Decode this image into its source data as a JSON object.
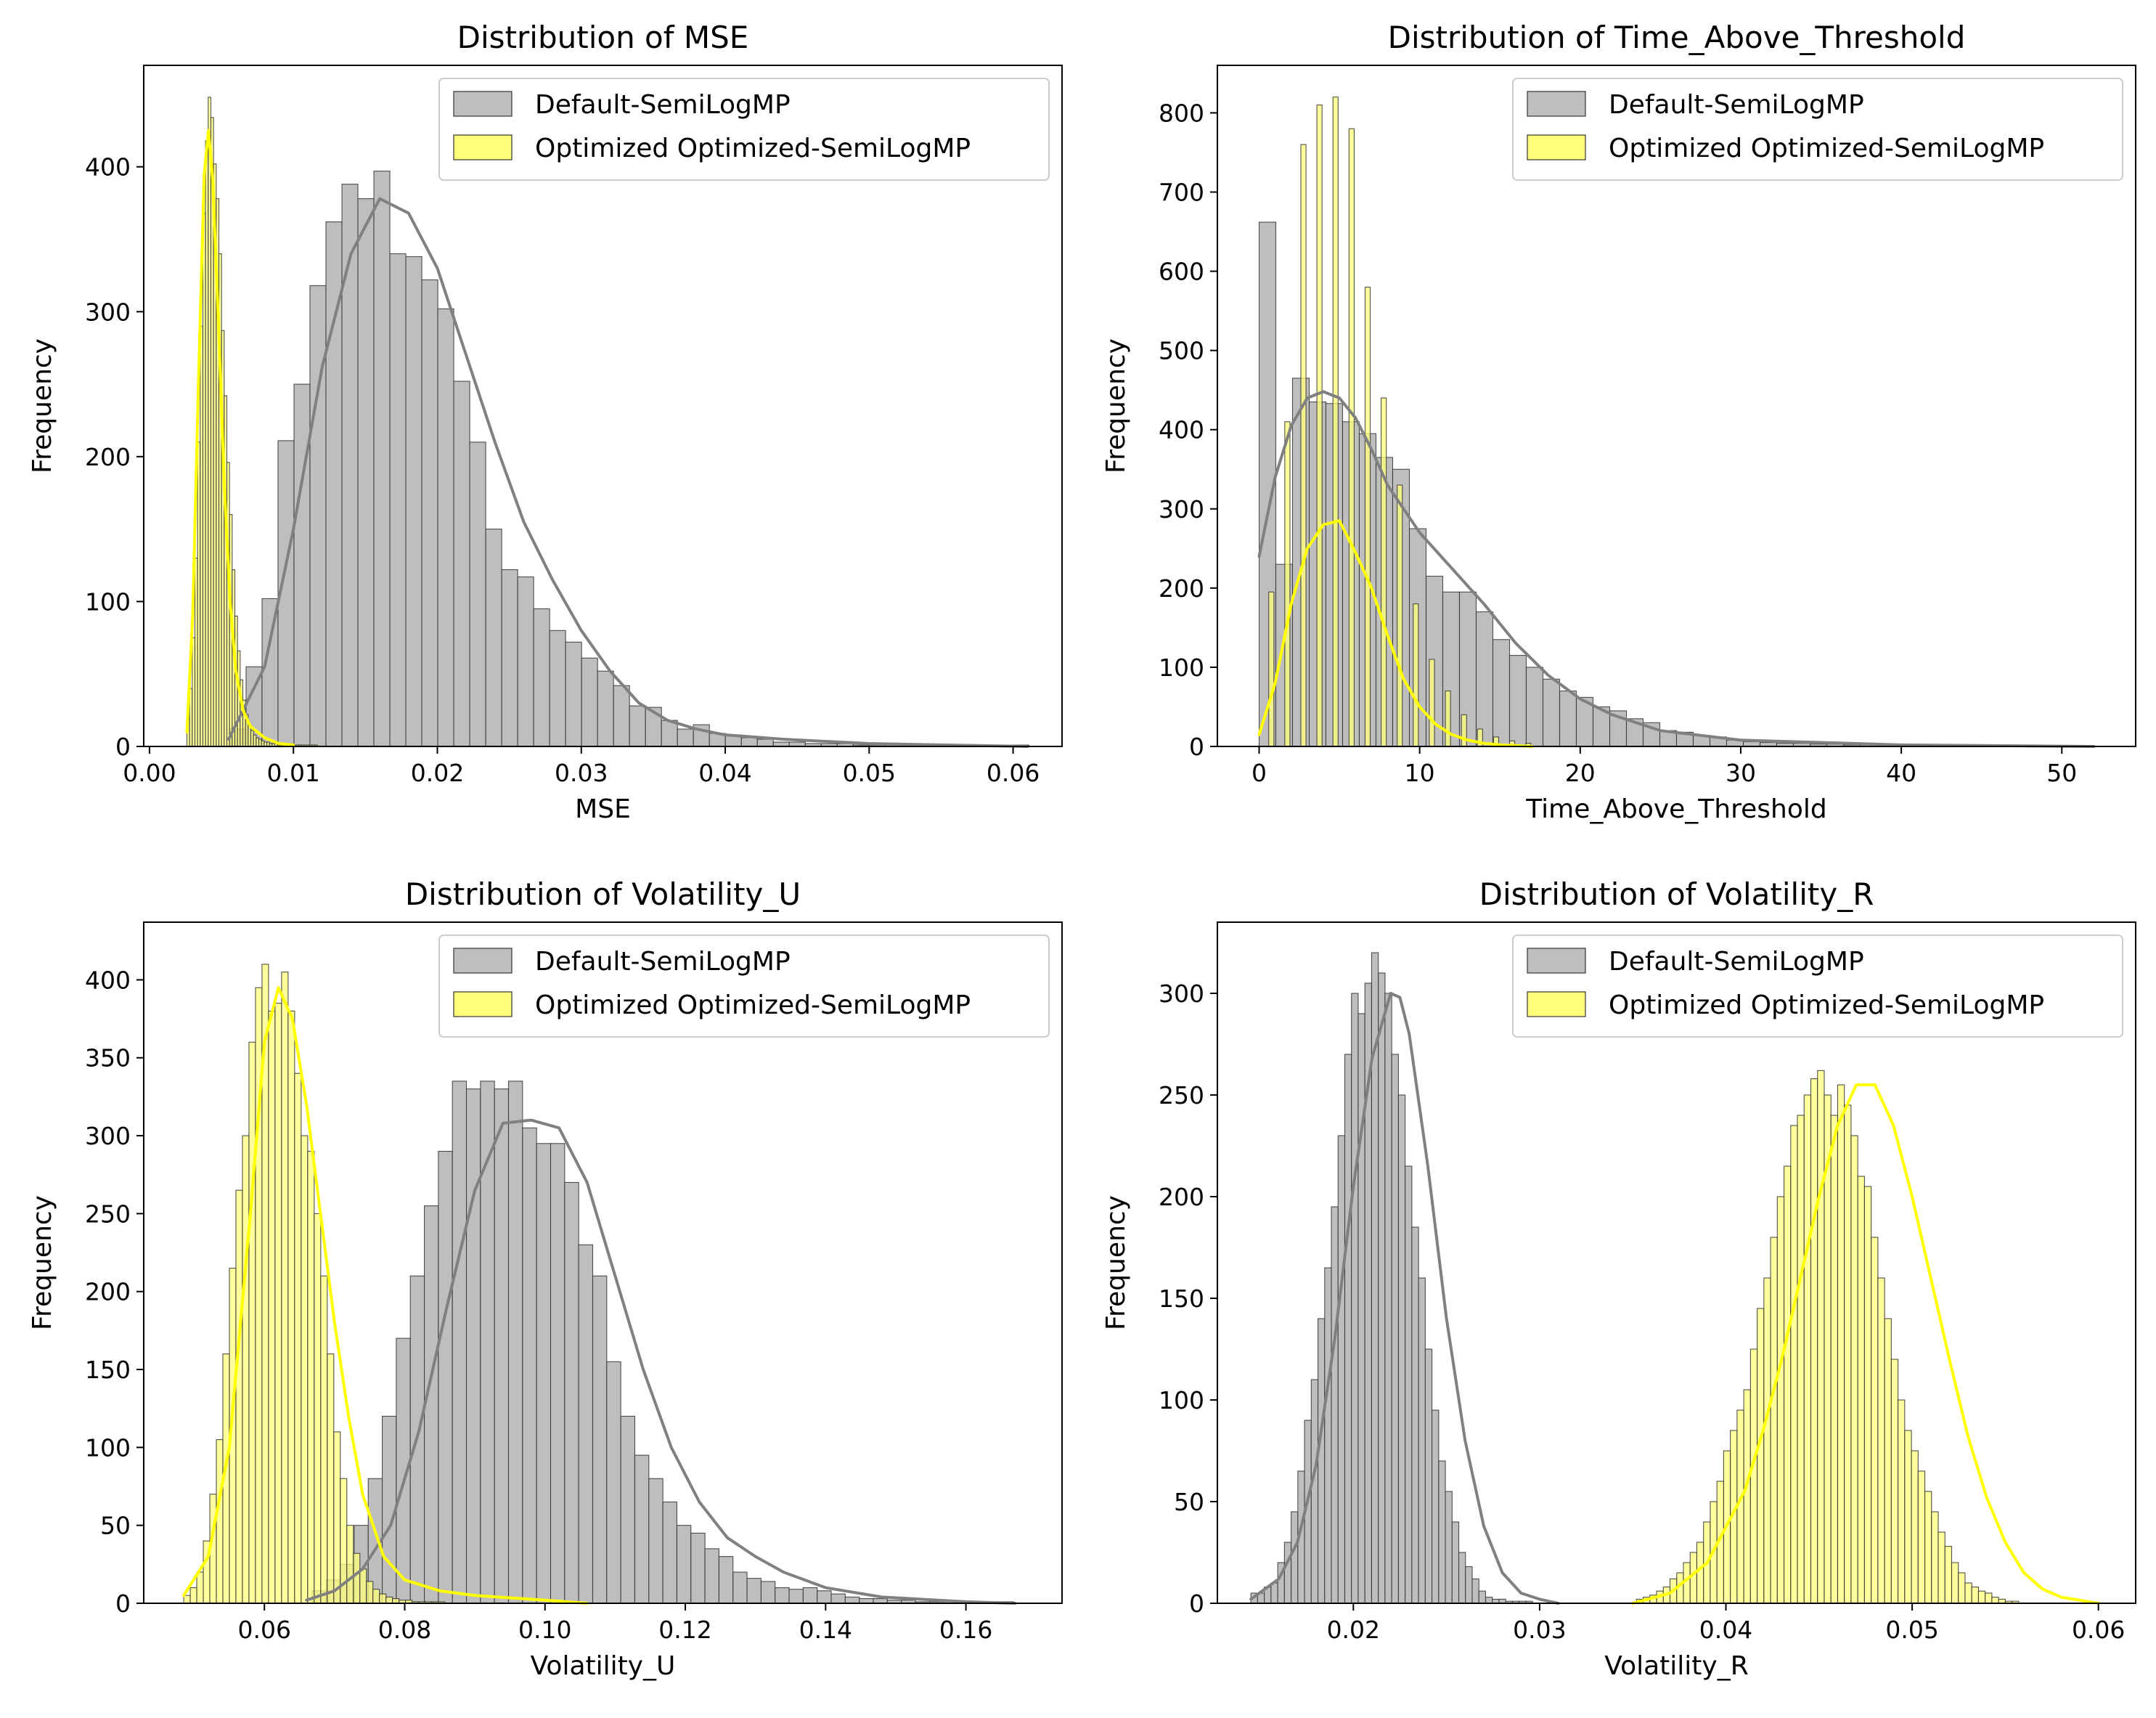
{
  "figure": {
    "series_names": [
      "Default-SemiLogMP",
      "Optimized Optimized-SemiLogMP"
    ],
    "colors": {
      "default_fill": "#bebebe",
      "default_line": "#808080",
      "optimized_fill": "#ffff7a",
      "optimized_line": "#ffff00",
      "bar_edge": "#333333"
    }
  },
  "chart_data": [
    {
      "type": "histogram",
      "title": "Distribution of MSE",
      "xlabel": "MSE",
      "ylabel": "Frequency",
      "xlim": [
        -0.0004,
        0.0634
      ],
      "ylim": [
        0,
        470
      ],
      "xticks": [
        0.0,
        0.01,
        0.02,
        0.03,
        0.04,
        0.05,
        0.06
      ],
      "xtick_labels": [
        "0.00",
        "0.01",
        "0.02",
        "0.03",
        "0.04",
        "0.05",
        "0.06"
      ],
      "yticks": [
        0,
        100,
        200,
        300,
        400
      ],
      "ytick_labels": [
        "0",
        "100",
        "200",
        "300",
        "400"
      ],
      "legend": "top-right",
      "grid": false,
      "series": [
        {
          "name": "Default-SemiLogMP",
          "bin_start": 0.0056,
          "bin_width": 0.00111,
          "counts": [
            12,
            55,
            102,
            211,
            250,
            318,
            362,
            388,
            378,
            397,
            340,
            338,
            322,
            302,
            252,
            210,
            150,
            122,
            117,
            95,
            80,
            72,
            61,
            52,
            42,
            28,
            27,
            18,
            12,
            15,
            9,
            8,
            6,
            5,
            3,
            3,
            2,
            2,
            2,
            1,
            1,
            1,
            1,
            1,
            1,
            0,
            1,
            0,
            0,
            1
          ],
          "kde_x": [
            0.0055,
            0.008,
            0.01,
            0.012,
            0.014,
            0.016,
            0.018,
            0.02,
            0.022,
            0.024,
            0.026,
            0.028,
            0.03,
            0.032,
            0.034,
            0.036,
            0.038,
            0.04,
            0.044,
            0.05,
            0.061
          ],
          "kde_y": [
            5,
            55,
            150,
            262,
            340,
            378,
            368,
            330,
            270,
            210,
            155,
            115,
            80,
            52,
            30,
            18,
            12,
            8,
            5,
            2,
            0
          ]
        },
        {
          "name": "Optimized Optimized-SemiLogMP",
          "bin_start": 0.0026,
          "bin_width": 0.000185,
          "counts": [
            20,
            40,
            75,
            130,
            210,
            290,
            368,
            418,
            448,
            434,
            402,
            378,
            340,
            287,
            242,
            196,
            160,
            122,
            90,
            66,
            46,
            32,
            22,
            15,
            11,
            8,
            6,
            5,
            4,
            3,
            3,
            2,
            2,
            2,
            1,
            1,
            1,
            1,
            1,
            1,
            1,
            1,
            1,
            1,
            1,
            1,
            1,
            1,
            1
          ],
          "kde_x": [
            0.0026,
            0.003,
            0.0034,
            0.0038,
            0.0041,
            0.0044,
            0.0048,
            0.0052,
            0.0056,
            0.006,
            0.0065,
            0.007,
            0.008,
            0.009,
            0.01
          ],
          "kde_y": [
            10,
            90,
            250,
            395,
            425,
            390,
            290,
            180,
            100,
            52,
            25,
            14,
            6,
            2,
            1
          ]
        }
      ]
    },
    {
      "type": "histogram",
      "title": "Distribution of Time_Above_Threshold",
      "xlabel": "Time_Above_Threshold",
      "ylabel": "Frequency",
      "xlim": [
        -2.6,
        54.6
      ],
      "ylim": [
        0,
        860
      ],
      "xticks": [
        0,
        10,
        20,
        30,
        40,
        50
      ],
      "xtick_labels": [
        "0",
        "10",
        "20",
        "30",
        "40",
        "50"
      ],
      "yticks": [
        0,
        100,
        200,
        300,
        400,
        500,
        600,
        700,
        800
      ],
      "ytick_labels": [
        "0",
        "100",
        "200",
        "300",
        "400",
        "500",
        "600",
        "700",
        "800"
      ],
      "legend": "top-right",
      "grid": false,
      "series": [
        {
          "name": "Default-SemiLogMP",
          "bin_start": 0,
          "bin_width": 1.04,
          "counts": [
            662,
            230,
            465,
            435,
            433,
            410,
            395,
            365,
            350,
            275,
            215,
            195,
            195,
            170,
            135,
            115,
            100,
            85,
            70,
            62,
            50,
            45,
            35,
            30,
            20,
            18,
            14,
            12,
            8,
            6,
            5,
            4,
            4,
            3,
            3,
            2,
            2,
            2,
            1,
            1,
            1,
            1,
            1,
            1,
            1,
            1,
            1,
            1,
            1,
            1
          ],
          "kde_x": [
            0,
            1,
            2,
            3,
            4,
            5,
            6,
            7,
            8,
            9,
            10,
            12,
            14,
            16,
            18,
            20,
            22,
            25,
            30,
            40,
            52
          ],
          "kde_y": [
            240,
            340,
            405,
            440,
            448,
            440,
            415,
            375,
            330,
            300,
            270,
            225,
            180,
            130,
            90,
            60,
            40,
            20,
            8,
            2,
            0
          ]
        },
        {
          "name": "Optimized Optimized-SemiLogMP",
          "bin_start": 0.6,
          "bin_width": 1.0,
          "bar_fraction": 0.32,
          "counts": [
            195,
            410,
            760,
            810,
            820,
            780,
            580,
            440,
            330,
            180,
            110,
            70,
            40,
            22,
            12,
            7,
            4
          ],
          "kde_x": [
            0,
            1,
            2,
            3,
            4,
            5,
            6,
            7,
            8,
            9,
            10,
            11,
            12,
            13,
            14,
            15,
            16,
            17
          ],
          "kde_y": [
            15,
            80,
            180,
            250,
            280,
            285,
            245,
            200,
            140,
            85,
            50,
            28,
            15,
            8,
            4,
            2,
            1,
            0
          ]
        }
      ]
    },
    {
      "type": "histogram",
      "title": "Distribution of Volatility_U",
      "xlabel": "Volatility_U",
      "ylabel": "Frequency",
      "xlim": [
        0.0428,
        0.1737
      ],
      "ylim": [
        0,
        437
      ],
      "xticks": [
        0.06,
        0.08,
        0.1,
        0.12,
        0.14,
        0.16
      ],
      "xtick_labels": [
        "0.06",
        "0.08",
        "0.10",
        "0.12",
        "0.14",
        "0.16"
      ],
      "yticks": [
        0,
        50,
        100,
        150,
        200,
        250,
        300,
        350,
        400
      ],
      "ytick_labels": [
        "0",
        "50",
        "100",
        "150",
        "200",
        "250",
        "300",
        "350",
        "400"
      ],
      "legend": "top-right",
      "grid": false,
      "series": [
        {
          "name": "Default-SemiLogMP",
          "bin_start": 0.0668,
          "bin_width": 0.002,
          "counts": [
            8,
            15,
            25,
            50,
            80,
            120,
            170,
            210,
            255,
            290,
            335,
            330,
            335,
            330,
            335,
            305,
            295,
            295,
            270,
            230,
            210,
            155,
            120,
            95,
            80,
            65,
            50,
            45,
            35,
            30,
            20,
            16,
            14,
            10,
            9,
            10,
            8,
            6,
            4,
            3,
            3,
            2,
            2,
            1,
            1,
            1,
            1,
            1,
            1,
            1
          ],
          "kde_x": [
            0.066,
            0.07,
            0.074,
            0.078,
            0.082,
            0.086,
            0.09,
            0.094,
            0.098,
            0.102,
            0.106,
            0.11,
            0.114,
            0.118,
            0.122,
            0.126,
            0.13,
            0.134,
            0.14,
            0.148,
            0.16,
            0.167
          ],
          "kde_y": [
            2,
            8,
            22,
            50,
            110,
            190,
            265,
            308,
            310,
            305,
            270,
            210,
            150,
            100,
            65,
            42,
            30,
            20,
            10,
            4,
            1,
            0
          ]
        },
        {
          "name": "Optimized Optimized-SemiLogMP",
          "bin_start": 0.0485,
          "bin_width": 0.00093,
          "counts": [
            5,
            10,
            20,
            40,
            70,
            105,
            160,
            215,
            265,
            300,
            360,
            395,
            410,
            380,
            385,
            405,
            380,
            340,
            300,
            290,
            250,
            210,
            160,
            110,
            80,
            50,
            32,
            22,
            14,
            9,
            6,
            4,
            3,
            2,
            2,
            1,
            1,
            1,
            1,
            1
          ],
          "kde_x": [
            0.0485,
            0.052,
            0.055,
            0.058,
            0.06,
            0.062,
            0.064,
            0.066,
            0.068,
            0.07,
            0.072,
            0.074,
            0.077,
            0.08,
            0.085,
            0.09,
            0.1,
            0.106
          ],
          "kde_y": [
            5,
            30,
            100,
            250,
            360,
            395,
            375,
            320,
            250,
            180,
            120,
            70,
            30,
            15,
            8,
            5,
            2,
            0
          ]
        }
      ]
    },
    {
      "type": "histogram",
      "title": "Distribution of Volatility_R",
      "xlabel": "Volatility_R",
      "ylabel": "Frequency",
      "xlim": [
        0.0127,
        0.062
      ],
      "ylim": [
        0,
        335
      ],
      "xticks": [
        0.02,
        0.03,
        0.04,
        0.05,
        0.06
      ],
      "xtick_labels": [
        "0.02",
        "0.03",
        "0.04",
        "0.05",
        "0.06"
      ],
      "yticks": [
        0,
        50,
        100,
        150,
        200,
        250,
        300
      ],
      "ytick_labels": [
        "0",
        "50",
        "100",
        "150",
        "200",
        "250",
        "300"
      ],
      "legend": "top-right",
      "grid": false,
      "series": [
        {
          "name": "Default-SemiLogMP",
          "bin_start": 0.0145,
          "bin_width": 0.00036,
          "counts": [
            5,
            5,
            8,
            10,
            20,
            30,
            45,
            65,
            90,
            110,
            140,
            165,
            195,
            230,
            270,
            300,
            290,
            305,
            320,
            310,
            300,
            270,
            250,
            215,
            185,
            160,
            125,
            95,
            70,
            55,
            40,
            25,
            18,
            12,
            6,
            3,
            2,
            2,
            1,
            1,
            1,
            1
          ],
          "kde_x": [
            0.0145,
            0.016,
            0.017,
            0.018,
            0.019,
            0.02,
            0.021,
            0.022,
            0.0225,
            0.023,
            0.024,
            0.025,
            0.026,
            0.027,
            0.028,
            0.029,
            0.03,
            0.031
          ],
          "kde_y": [
            2,
            12,
            30,
            68,
            130,
            205,
            268,
            300,
            298,
            280,
            215,
            140,
            80,
            38,
            15,
            5,
            2,
            0
          ]
        },
        {
          "name": "Optimized Optimized-SemiLogMP",
          "bin_start": 0.0352,
          "bin_width": 0.00036,
          "counts": [
            2,
            3,
            4,
            6,
            8,
            12,
            15,
            20,
            25,
            30,
            40,
            50,
            60,
            75,
            85,
            95,
            105,
            125,
            145,
            160,
            180,
            200,
            215,
            235,
            240,
            250,
            258,
            262,
            250,
            240,
            255,
            245,
            230,
            210,
            205,
            180,
            160,
            140,
            120,
            100,
            85,
            75,
            65,
            55,
            45,
            35,
            28,
            20,
            15,
            10,
            8,
            6,
            5,
            3,
            2,
            1,
            1
          ],
          "kde_x": [
            0.035,
            0.037,
            0.039,
            0.041,
            0.042,
            0.043,
            0.044,
            0.045,
            0.046,
            0.047,
            0.048,
            0.049,
            0.05,
            0.051,
            0.052,
            0.053,
            0.054,
            0.055,
            0.056,
            0.057,
            0.058,
            0.06
          ],
          "kde_y": [
            0,
            5,
            20,
            55,
            85,
            120,
            160,
            200,
            235,
            255,
            255,
            235,
            200,
            160,
            120,
            82,
            52,
            30,
            15,
            7,
            3,
            0
          ]
        }
      ]
    }
  ]
}
